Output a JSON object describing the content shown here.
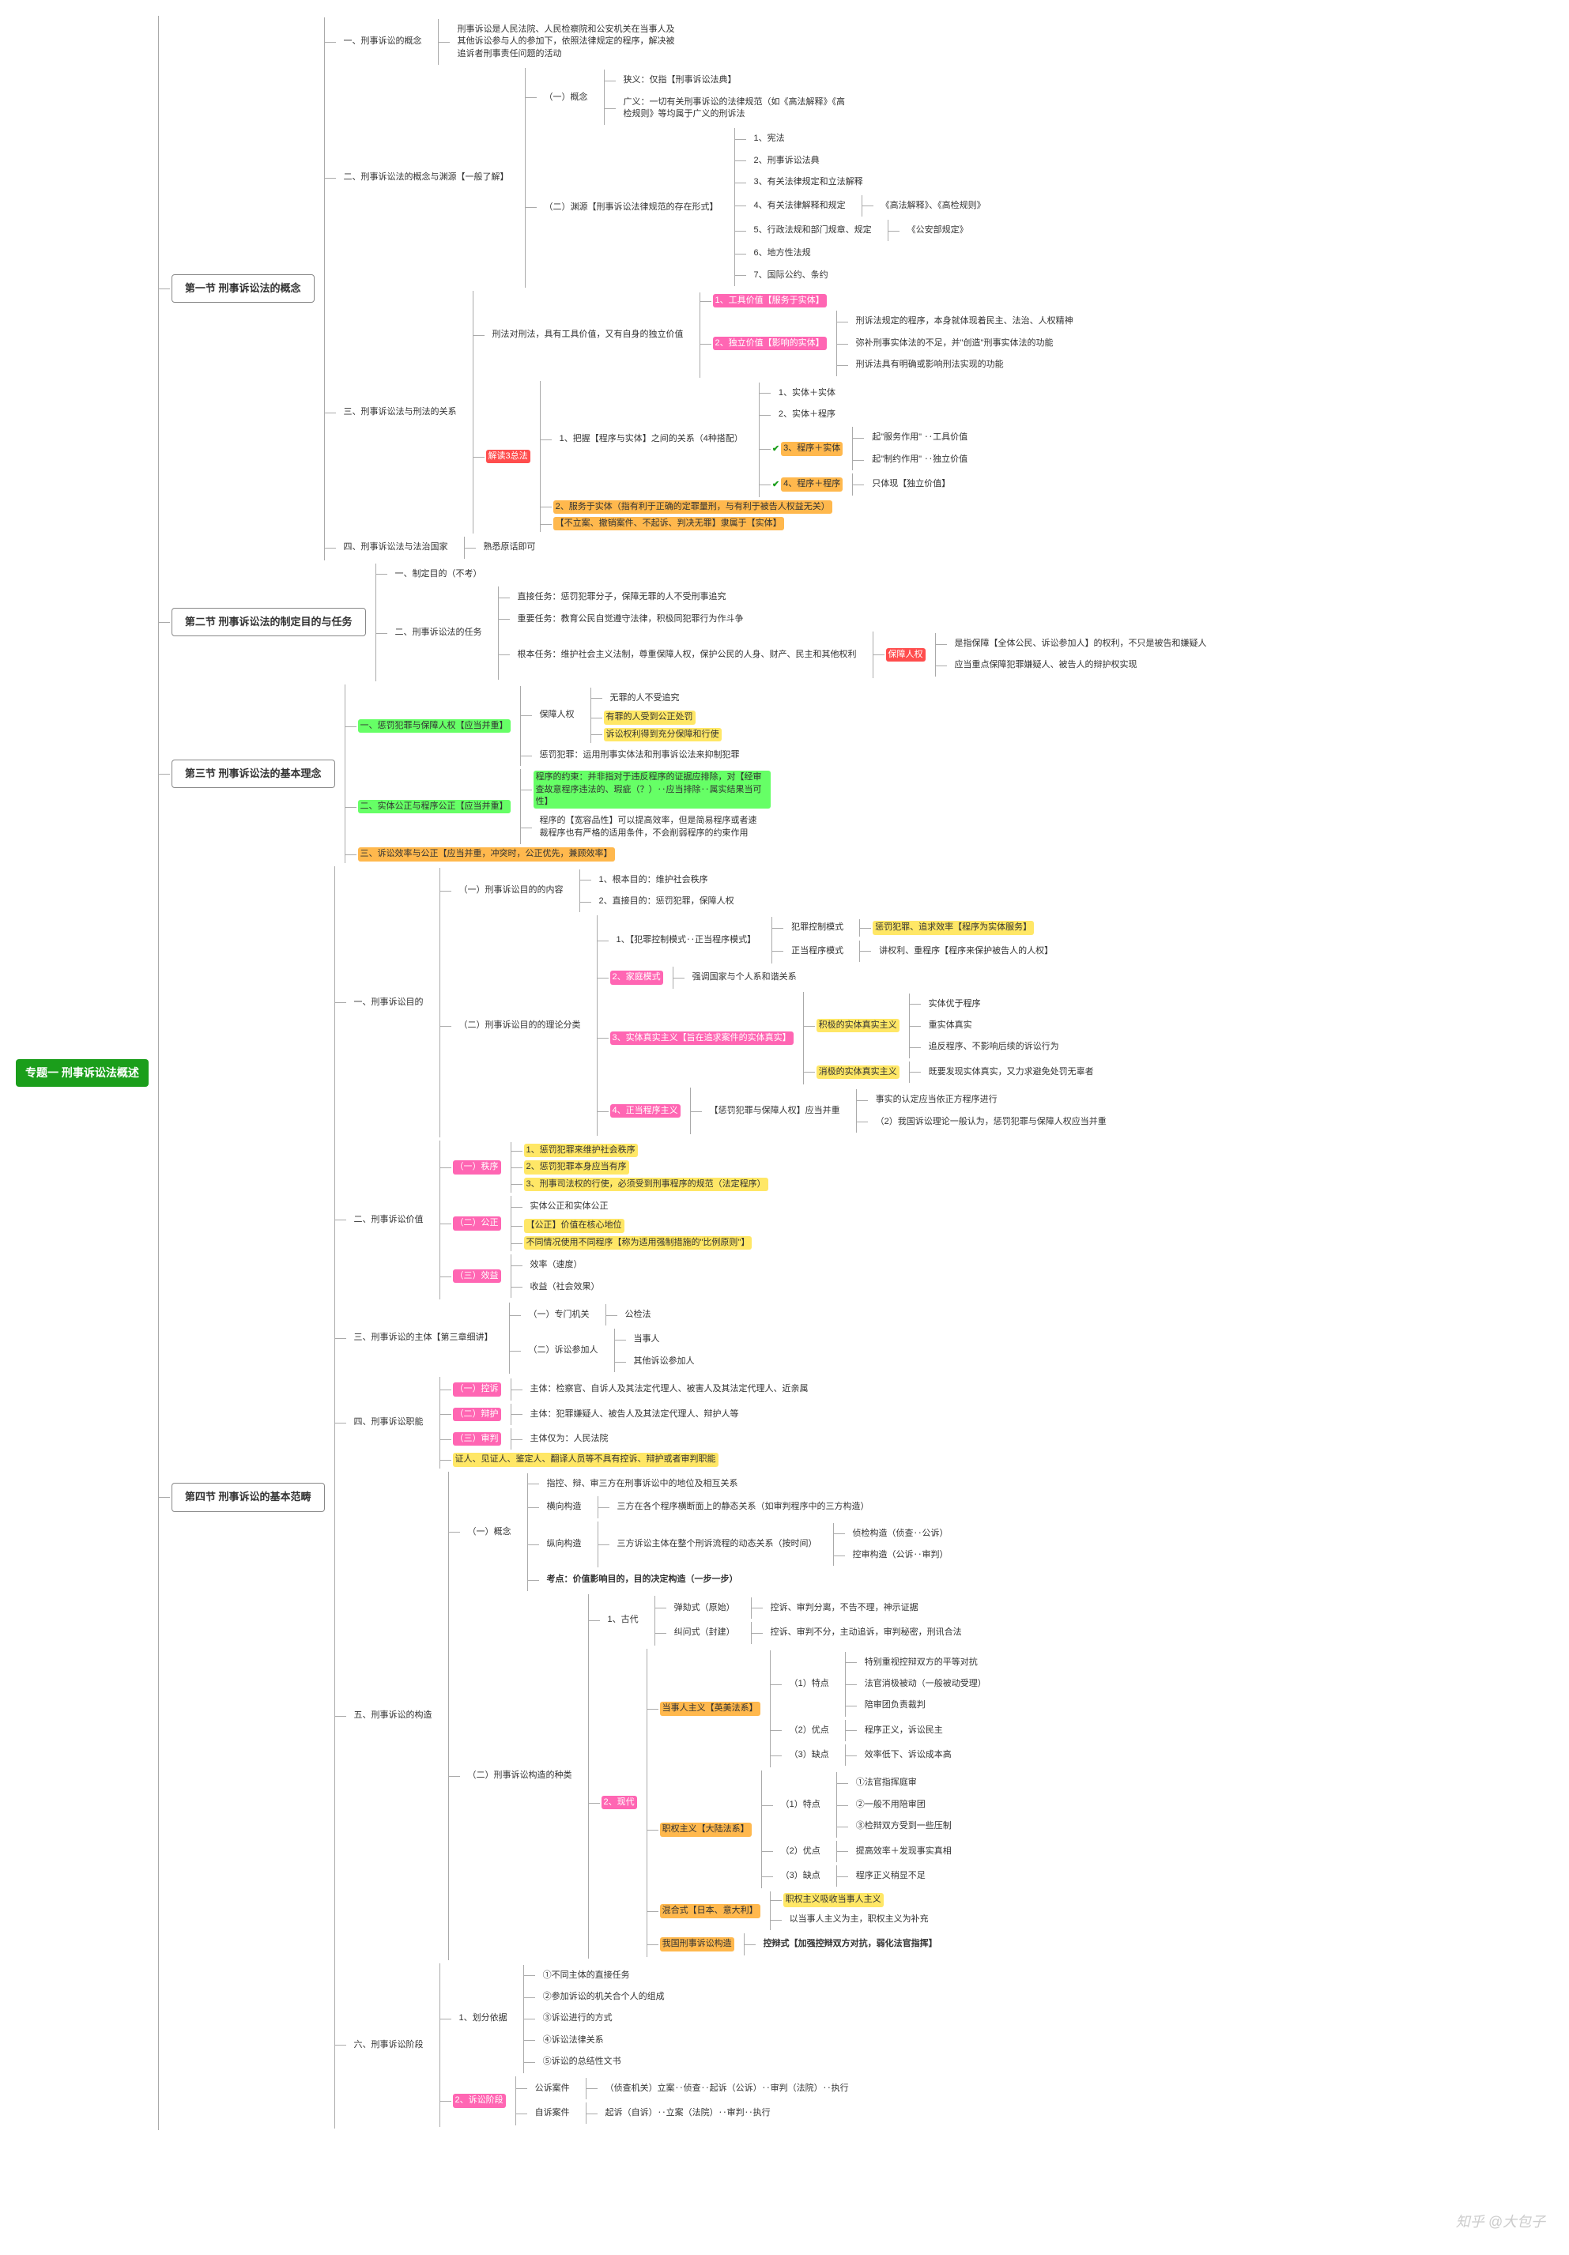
{
  "watermark": "知乎 @大包子",
  "colors": {
    "root_bg": "#1b9e1b",
    "root_fg": "#ffffff",
    "border": "#888888",
    "line": "#aaaaaa",
    "hl_green": "#66ff66",
    "hl_orange": "#ffb84d",
    "hl_pink": "#ff66b3",
    "hl_yellow": "#ffe766",
    "hl_red": "#ff4d4d"
  },
  "root": "专题一 刑事诉讼法概述",
  "s1": {
    "title": "第一节 刑事诉讼法的概念",
    "n1": "一、刑事诉讼的概念",
    "n1_desc": "刑事诉讼是人民法院、人民检察院和公安机关在当事人及其他诉讼参与人的参加下，依照法律规定的程序，解决被追诉者刑事责任问题的活动",
    "n2": "二、刑事诉讼法的概念与渊源【一般了解】",
    "n2_1": "（一）概念",
    "n2_1a": "狭义：仅指【刑事诉讼法典】",
    "n2_1b": "广义：一切有关刑事诉讼的法律规范（如《高法解释》《高检规则》等均属于广义的刑诉法",
    "n2_2": "（二）渊源【刑事诉讼法律规范的存在形式】",
    "n2_2_items": [
      "1、宪法",
      "2、刑事诉讼法典",
      "3、有关法律规定和立法解释",
      "4、有关法律解释和规定",
      "5、行政法规和部门规章、规定",
      "6、地方性法规",
      "7、国际公约、条约"
    ],
    "n2_2_4r": "《高法解释》、《高检规则》",
    "n2_2_5r": "《公安部规定》",
    "n3": "三、刑事诉讼法与刑法的关系",
    "n3_top": "刑法对刑法，具有工具价值，又有自身的独立价值",
    "n3_top_1": "1、工具价值【服务于实体】",
    "n3_top_2": "2、独立价值【影响的实体】",
    "n3_top_2a": "刑诉法规定的程序，本身就体现着民主、法治、人权精神",
    "n3_top_2b": "弥补刑事实体法的不足，并\"创造\"刑事实体法的功能",
    "n3_top_2c": "刑诉法具有明确或影响刑法实现的功能",
    "n3_box": "解读3总法",
    "n3_b1": "1、把握【程序与实体】之间的关系（4种搭配）",
    "n3_b1_items": [
      "1、实体＋实体",
      "2、实体＋程序",
      "3、程序＋实体",
      "4、程序＋程序"
    ],
    "n3_b1_3r1": "起\"服务作用\" ‥工具价值",
    "n3_b1_3r2": "起\"制约作用\" ‥独立价值",
    "n3_b1_4r": "只体现【独立价值】",
    "n3_b2": "2、服务于实体（指有利于正确的定罪量刑，与有利于被告人权益无关）",
    "n3_b3": "【不立案、撤销案件、不起诉、判决无罪】隶属于【实体】",
    "n4": "四、刑事诉讼法与法治国家",
    "n4r": "熟悉原话即可"
  },
  "s2": {
    "title": "第二节 刑事诉讼法的制定目的与任务",
    "n1": "一、制定目的（不考）",
    "n2": "二、刑事诉讼法的任务",
    "n2a": "直接任务：惩罚犯罪分子，保障无罪的人不受刑事追究",
    "n2b": "重要任务：教育公民自觉遵守法律，积极同犯罪行为作斗争",
    "n2c": "根本任务：维护社会主义法制，尊重保障人权，保护公民的人身、财产、民主和其他权利",
    "n2c_box": "保障人权",
    "n2c_r1": "是指保障【全体公民、诉讼参加人】的权利，不只是被告和嫌疑人",
    "n2c_r2": "应当重点保障犯罪嫌疑人、被告人的辩护权实现"
  },
  "s3": {
    "title": "第三节 刑事诉讼法的基本理念",
    "n1": "一、惩罚犯罪与保障人权【应当并重】",
    "n1a": "保障人权",
    "n1a_items": [
      "无罪的人不受追究",
      "有罪的人受到公正处罚",
      "诉讼权利得到充分保障和行使"
    ],
    "n1b": "惩罚犯罪：运用刑事实体法和刑事诉讼法来抑制犯罪",
    "n2": "二、实体公正与程序公正【应当并重】",
    "n2a": "程序的约束：并非指对于违反程序的证据应排除，对【经审查故意程序违法的、瑕疵（？）‥应当排除‥属实结果当可性】",
    "n2b": "程序的【宽容品性】可以提高效率，但是简易程序或者速裁程序也有严格的适用条件，不会削弱程序的约束作用",
    "n3": "三、诉讼效率与公正【应当并重，冲突时，公正优先，兼顾效率】"
  },
  "s4": {
    "title": "第四节 刑事诉讼的基本范畴",
    "n1": "一、刑事诉讼目的",
    "n1_1": "（一）刑事诉讼目的的内容",
    "n1_1a": "1、根本目的：维护社会秩序",
    "n1_1b": "2、直接目的：惩罚犯罪，保障人权",
    "n1_2": "（二）刑事诉讼目的的理论分类",
    "n1_2_1": "1、【犯罪控制模式‥正当程序模式】",
    "n1_2_1a": "犯罪控制模式",
    "n1_2_1ar": "惩罚犯罪、追求效率【程序为实体服务】",
    "n1_2_1b": "正当程序模式",
    "n1_2_1br": "讲权利、重程序【程序来保护被告人的人权】",
    "n1_2_2": "2、家庭模式",
    "n1_2_2r": "强调国家与个人系和谐关系",
    "n1_2_3": "3、实体真实主义【旨在追求案件的实体真实】",
    "n1_2_3a": "积极的实体真实主义",
    "n1_2_3a_items": [
      "实体优于程序",
      "重实体真实",
      "追反程序、不影响后续的诉讼行为"
    ],
    "n1_2_3b": "消极的实体真实主义",
    "n1_2_3br": "既要发现实体真实，又力求避免处罚无辜者",
    "n1_2_4": "4、正当程序主义",
    "n1_2_4r": "【惩罚犯罪与保障人权】应当并重",
    "n1_2_4a": "事实的认定应当依正方程序进行",
    "n1_2_4b": "（2）我国诉讼理论一般认为，惩罚犯罪与保障人权应当并重",
    "n2": "二、刑事诉讼价值",
    "n2_1": "（一）秩序",
    "n2_1a": "1、惩罚犯罪来维护社会秩序",
    "n2_1b": "2、惩罚犯罪本身应当有序",
    "n2_1c": "3、刑事司法权的行使，必须受到刑事程序的规范（法定程序）",
    "n2_2": "（二）公正",
    "n2_2a": "实体公正和实体公正",
    "n2_2b": "【公正】价值在核心地位",
    "n2_2c": "不同情况使用不同程序【称为适用强制措施的\"比例原则\"】",
    "n2_3": "（三）效益",
    "n2_3a": "效率（速度）",
    "n2_3b": "收益（社会效果）",
    "n3": "三、刑事诉讼的主体【第三章细讲】",
    "n3_1": "（一）专门机关",
    "n3_1r": "公检法",
    "n3_2": "（二）诉讼参加人",
    "n3_2a": "当事人",
    "n3_2b": "其他诉讼参加人",
    "n4": "四、刑事诉讼职能",
    "n4_1": "（一）控诉",
    "n4_1r": "主体：检察官、自诉人及其法定代理人、被害人及其法定代理人、近亲属",
    "n4_2": "（二）辩护",
    "n4_2r": "主体：犯罪嫌疑人、被告人及其法定代理人、辩护人等",
    "n4_3": "（三）审判",
    "n4_3r": "主体仅为：人民法院",
    "n4_4": "证人、见证人、鉴定人、翻译人员等不具有控诉、辩护或者审判职能",
    "n5": "五、刑事诉讼的构造",
    "n5_1": "（一）概念",
    "n5_1a": "指控、辩、审三方在刑事诉讼中的地位及相互关系",
    "n5_1b": "横向构造",
    "n5_1br": "三方在各个程序横断面上的静态关系（如审判程序中的三方构造）",
    "n5_1c": "纵向构造",
    "n5_1cr": "三方诉讼主体在整个刑诉流程的动态关系（按时间）",
    "n5_1c1": "侦检构造（侦查‥公诉）",
    "n5_1c2": "控审构造（公诉‥审判）",
    "n5_1d": "考点：价值影响目的，目的决定构造（一步一步）",
    "n5_2": "（二）刑事诉讼构造的种类",
    "n5_2_1": "1、古代",
    "n5_2_1a": "弹劾式（原始）",
    "n5_2_1ar": "控诉、审判分离，不告不理，神示证据",
    "n5_2_1b": "纠问式（封建）",
    "n5_2_1br": "控诉、审判不分，主动追诉，审判秘密，刑讯合法",
    "n5_2_2": "2、现代",
    "n5_2_2a": "当事人主义【英美法系】",
    "n5_2_2a1": "（1）特点",
    "n5_2_2a1_items": [
      "特别重视控辩双方的平等对抗",
      "法官消极被动（一般被动受理）",
      "陪审团负责裁判"
    ],
    "n5_2_2a2": "（2）优点",
    "n5_2_2a2r": "程序正义，诉讼民主",
    "n5_2_2a3": "（3）缺点",
    "n5_2_2a3r": "效率低下、诉讼成本高",
    "n5_2_2b": "职权主义【大陆法系】",
    "n5_2_2b1": "（1）特点",
    "n5_2_2b1_items": [
      "①法官指挥庭审",
      "②一般不用陪审团",
      "③检辩双方受到一些压制"
    ],
    "n5_2_2b2": "（2）优点",
    "n5_2_2b2r": "提高效率＋发现事实真相",
    "n5_2_2b3": "（3）缺点",
    "n5_2_2b3r": "程序正义稍显不足",
    "n5_2_2c": "混合式【日本、意大利】",
    "n5_2_2c1": "职权主义吸收当事人主义",
    "n5_2_2c2": "以当事人主义为主，职权主义为补充",
    "n5_2_2d": "我国刑事诉讼构造",
    "n5_2_2dr": "控辩式【加强控辩双方对抗，弱化法官指挥】",
    "n6": "六、刑事诉讼阶段",
    "n6_1": "1、划分依据",
    "n6_1_items": [
      "①不同主体的直接任务",
      "②参加诉讼的机关合个人的组成",
      "③诉讼进行的方式",
      "④诉讼法律关系",
      "⑤诉讼的总结性文书"
    ],
    "n6_2": "2、诉讼阶段",
    "n6_2a": "公诉案件",
    "n6_2ar": "（侦查机关）立案‥侦查‥起诉（公诉）‥审判（法院）‥执行",
    "n6_2b": "自诉案件",
    "n6_2br": "起诉（自诉）‥立案（法院）‥审判‥执行"
  }
}
